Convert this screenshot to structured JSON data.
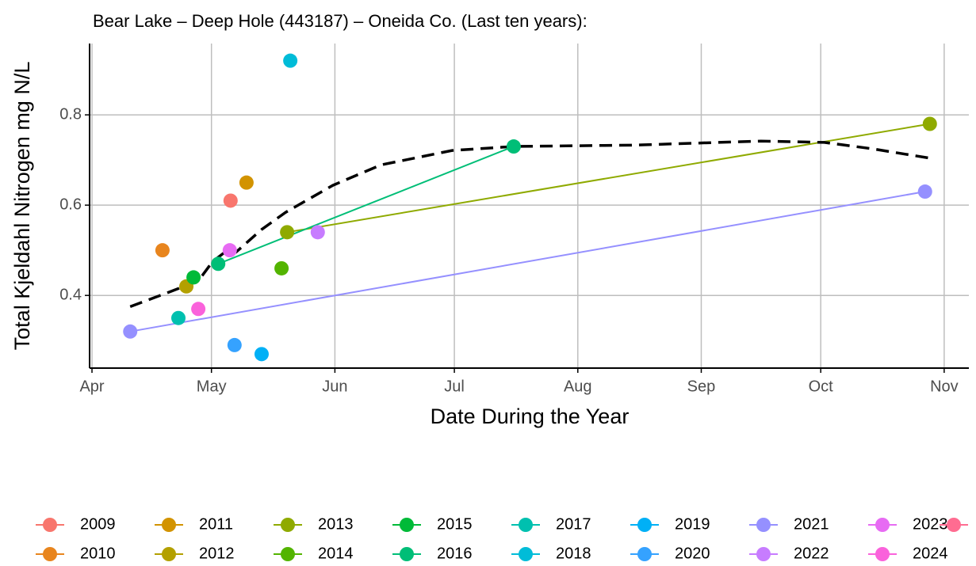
{
  "chart_data": {
    "type": "line",
    "title": "Bear Lake – Deep Hole (443187) – Oneida Co.  (Last ten years):",
    "x_label": "Date During the Year",
    "y_label": "Total Kjeldahl Nitrogen mg N/L",
    "xlim": [
      90.4,
      311.2
    ],
    "xticks": [
      {
        "value": 91,
        "label": "Apr"
      },
      {
        "value": 121,
        "label": "May"
      },
      {
        "value": 152,
        "label": "Jun"
      },
      {
        "value": 182,
        "label": "Jul"
      },
      {
        "value": 213,
        "label": "Aug"
      },
      {
        "value": 244,
        "label": "Sep"
      },
      {
        "value": 274,
        "label": "Oct"
      },
      {
        "value": 305,
        "label": "Nov"
      }
    ],
    "ylim": [
      0.239,
      0.958
    ],
    "yticks": [
      0.4,
      0.6,
      0.8
    ],
    "grid": true,
    "legend": "bottom",
    "series": [
      {
        "name": "2009",
        "color": "#F8766D",
        "x": [
          125.8
        ],
        "values": [
          0.61
        ]
      },
      {
        "name": "2010",
        "color": "#E8851E",
        "x": [
          108.7
        ],
        "values": [
          0.5
        ]
      },
      {
        "name": "2011",
        "color": "#D29300",
        "x": [
          129.8
        ],
        "values": [
          0.65
        ]
      },
      {
        "name": "2012",
        "color": "#B3A000",
        "x": [
          114.7
        ],
        "values": [
          0.42
        ]
      },
      {
        "name": "2013",
        "color": "#8FAA00",
        "x": [
          140,
          301.4
        ],
        "values": [
          0.54,
          0.78
        ]
      },
      {
        "name": "2014",
        "color": "#53B400",
        "x": [
          138.6
        ],
        "values": [
          0.46
        ]
      },
      {
        "name": "2015",
        "color": "#00BA38",
        "x": [
          116.5
        ],
        "values": [
          0.44
        ]
      },
      {
        "name": "2016",
        "color": "#00BE77",
        "x": [
          122.7,
          196.9
        ],
        "values": [
          0.47,
          0.73
        ]
      },
      {
        "name": "2017",
        "color": "#00C0AF",
        "x": [
          112.7
        ],
        "values": [
          0.35
        ]
      },
      {
        "name": "2018",
        "color": "#00BCD8",
        "x": [
          140.8
        ],
        "values": [
          0.92
        ]
      },
      {
        "name": "2019",
        "color": "#00B0F6",
        "x": [
          133.6
        ],
        "values": [
          0.27
        ]
      },
      {
        "name": "2020",
        "color": "#35A2FF",
        "x": [
          126.8
        ],
        "values": [
          0.29
        ]
      },
      {
        "name": "2021",
        "color": "#9590FF",
        "x": [
          100.6,
          300.2
        ],
        "values": [
          0.32,
          0.63
        ]
      },
      {
        "name": "2022",
        "color": "#C77CFF",
        "x": [
          147.7
        ],
        "values": [
          0.54
        ]
      },
      {
        "name": "2023",
        "color": "#E76BF3",
        "x": [
          125.6
        ],
        "values": [
          0.5
        ]
      },
      {
        "name": "2024",
        "color": "#FA62DB",
        "x": [
          117.7
        ],
        "values": [
          0.37
        ]
      },
      {
        "name": null,
        "color": "#FF6C91",
        "x": [],
        "values": []
      }
    ],
    "trend": {
      "color": "#000000",
      "x": [
        100.6,
        109.7,
        117.7,
        121.3,
        125.3,
        127.2,
        133.6,
        139.6,
        151.5,
        163.5,
        181.4,
        196.9,
        227.2,
        259.0,
        274.9,
        286.9,
        301.4
      ],
      "values": [
        0.375,
        0.405,
        0.432,
        0.475,
        0.502,
        0.496,
        0.546,
        0.584,
        0.644,
        0.689,
        0.721,
        0.73,
        0.733,
        0.742,
        0.739,
        0.725,
        0.704
      ]
    }
  }
}
